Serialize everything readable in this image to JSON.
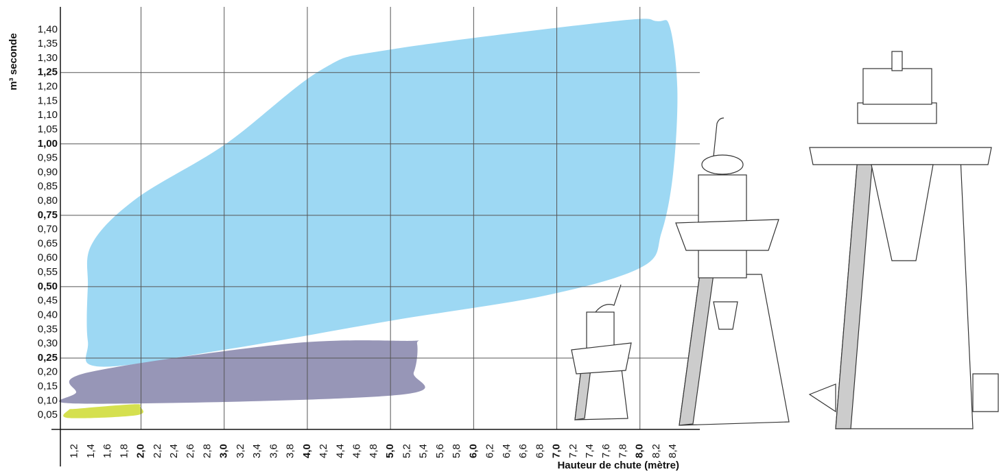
{
  "chart_data": {
    "type": "region",
    "xlabel": "Hauteur de chute (mètre)",
    "ylabel": "m³ seconde",
    "xlim": [
      1.03,
      8.72
    ],
    "ylim": [
      0,
      1.48
    ],
    "xticks": [
      {
        "value": 1.2,
        "label": "1,2"
      },
      {
        "value": 1.4,
        "label": "1,4"
      },
      {
        "value": 1.6,
        "label": "1,6"
      },
      {
        "value": 1.8,
        "label": "1,8"
      },
      {
        "value": 2.0,
        "label": "2,0",
        "major": true
      },
      {
        "value": 2.2,
        "label": "2,2"
      },
      {
        "value": 2.4,
        "label": "2,4"
      },
      {
        "value": 2.6,
        "label": "2,6"
      },
      {
        "value": 2.8,
        "label": "2,8"
      },
      {
        "value": 3.0,
        "label": "3,0",
        "major": true
      },
      {
        "value": 3.2,
        "label": "3,2"
      },
      {
        "value": 3.4,
        "label": "3,4"
      },
      {
        "value": 3.6,
        "label": "3,6"
      },
      {
        "value": 3.8,
        "label": "3,8"
      },
      {
        "value": 4.0,
        "label": "4,0",
        "major": true
      },
      {
        "value": 4.2,
        "label": "4,2"
      },
      {
        "value": 4.4,
        "label": "4,4"
      },
      {
        "value": 4.6,
        "label": "4,6"
      },
      {
        "value": 4.8,
        "label": "4,8"
      },
      {
        "value": 5.0,
        "label": "5,0",
        "major": true
      },
      {
        "value": 5.2,
        "label": "5,2"
      },
      {
        "value": 5.4,
        "label": "5,4"
      },
      {
        "value": 5.6,
        "label": "5,6"
      },
      {
        "value": 5.8,
        "label": "5,8"
      },
      {
        "value": 6.0,
        "label": "6,0",
        "major": true
      },
      {
        "value": 6.2,
        "label": "6,2"
      },
      {
        "value": 6.4,
        "label": "6,4"
      },
      {
        "value": 6.6,
        "label": "6,6"
      },
      {
        "value": 6.8,
        "label": "6,8"
      },
      {
        "value": 7.0,
        "label": "7,0",
        "major": true
      },
      {
        "value": 7.2,
        "label": "7,2"
      },
      {
        "value": 7.4,
        "label": "7,4"
      },
      {
        "value": 7.6,
        "label": "7,6"
      },
      {
        "value": 7.8,
        "label": "7,8"
      },
      {
        "value": 8.0,
        "label": "8,0",
        "major": true
      },
      {
        "value": 8.2,
        "label": "8,2"
      },
      {
        "value": 8.4,
        "label": "8,4"
      }
    ],
    "yticks": [
      {
        "value": 0.05,
        "label": "0,05"
      },
      {
        "value": 0.1,
        "label": "0,10"
      },
      {
        "value": 0.15,
        "label": "0,15"
      },
      {
        "value": 0.2,
        "label": "0,20"
      },
      {
        "value": 0.25,
        "label": "0,25",
        "major": true
      },
      {
        "value": 0.3,
        "label": "0,30"
      },
      {
        "value": 0.35,
        "label": "0,35"
      },
      {
        "value": 0.4,
        "label": "0,40"
      },
      {
        "value": 0.45,
        "label": "0,45"
      },
      {
        "value": 0.5,
        "label": "0,50",
        "major": true
      },
      {
        "value": 0.55,
        "label": "0,55"
      },
      {
        "value": 0.6,
        "label": "0,60"
      },
      {
        "value": 0.65,
        "label": "0,65"
      },
      {
        "value": 0.7,
        "label": "0,70"
      },
      {
        "value": 0.75,
        "label": "0,75",
        "major": true
      },
      {
        "value": 0.8,
        "label": "0,80"
      },
      {
        "value": 0.85,
        "label": "0,85"
      },
      {
        "value": 0.9,
        "label": "0,90"
      },
      {
        "value": 0.95,
        "label": "0,95"
      },
      {
        "value": 1.0,
        "label": "1,00",
        "major": true
      },
      {
        "value": 1.05,
        "label": "1,05"
      },
      {
        "value": 1.1,
        "label": "1,10"
      },
      {
        "value": 1.15,
        "label": "1,15"
      },
      {
        "value": 1.2,
        "label": "1,20"
      },
      {
        "value": 1.25,
        "label": "1,25",
        "major": true
      },
      {
        "value": 1.3,
        "label": "1,30"
      },
      {
        "value": 1.35,
        "label": "1,35"
      },
      {
        "value": 1.4,
        "label": "1,40"
      }
    ],
    "grid": true,
    "series": [
      {
        "color": "#9dd8f3",
        "x": [
          1.41,
          1.36,
          1.36,
          1.5,
          3.02,
          4.99,
          6.88,
          8.03,
          8.26,
          8.4,
          8.45,
          8.36,
          8.2,
          7.7,
          4.99,
          4.17,
          3.02,
          1.95
        ],
        "values": [
          0.65,
          0.5,
          0.31,
          0.22,
          0.28,
          0.38,
          0.47,
          0.57,
          0.69,
          0.9,
          1.19,
          1.41,
          1.43,
          1.43,
          1.33,
          1.26,
          1.0,
          0.81
        ]
      },
      {
        "color": "#9190b3",
        "x": [
          1.22,
          1.33,
          5.07,
          5.28,
          5.32,
          5.2,
          3.76,
          1.37
        ],
        "values": [
          0.13,
          0.09,
          0.12,
          0.2,
          0.3,
          0.31,
          0.3,
          0.2
        ]
      },
      {
        "color": "#d5e04f",
        "x": [
          1.13,
          1.13,
          1.95,
          1.99,
          1.91,
          1.25
        ],
        "values": [
          0.068,
          0.04,
          0.05,
          0.08,
          0.088,
          0.073
        ]
      }
    ]
  }
}
